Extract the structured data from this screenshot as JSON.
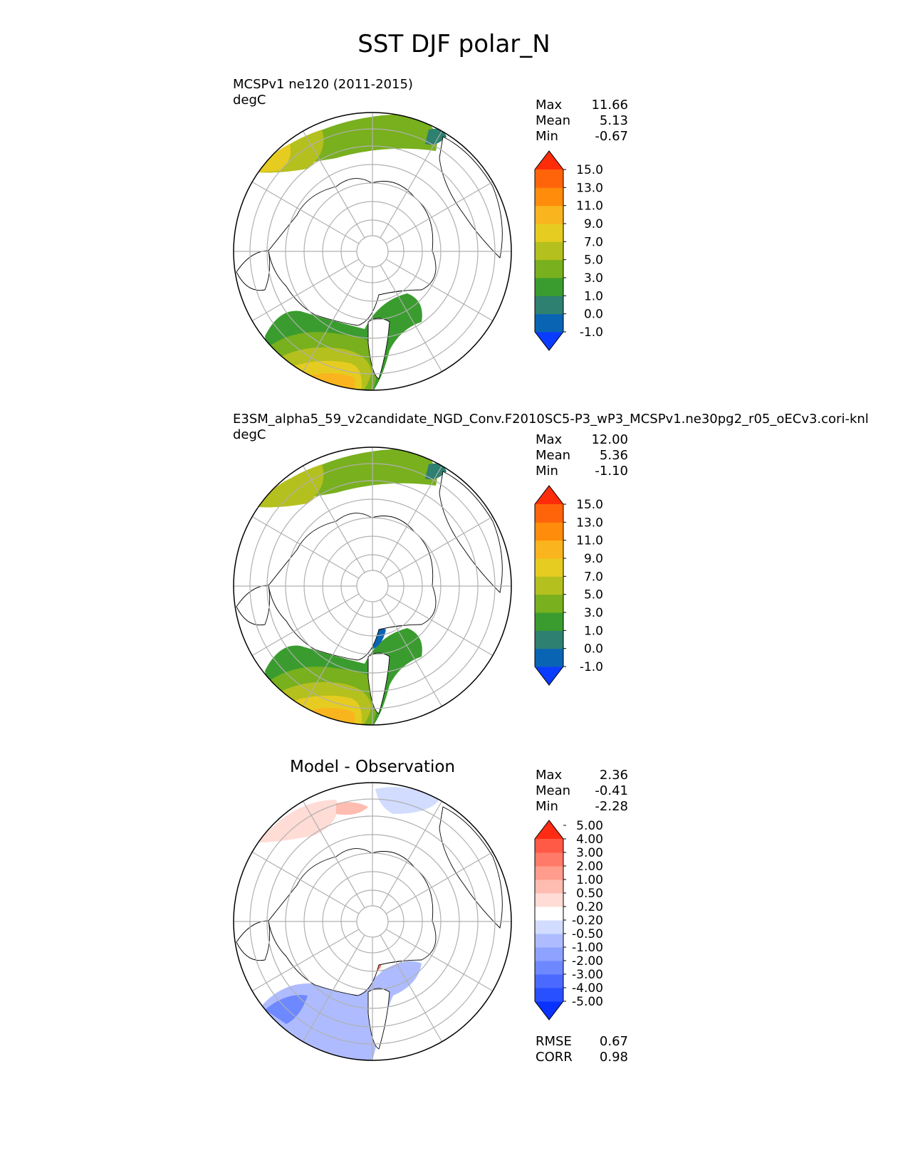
{
  "title": "SST DJF polar_N",
  "panels": [
    {
      "title_lines": [
        "MCSPv1 ne120 (2011-2015)",
        "degC"
      ],
      "stats": [
        [
          "Max",
          "11.66"
        ],
        [
          "Mean",
          "5.13"
        ],
        [
          "Min",
          "-0.67"
        ]
      ],
      "colorbar": {
        "colors": [
          "#0a3cff",
          "#0a64b4",
          "#2e8070",
          "#3a9c2e",
          "#78b01e",
          "#b4c01e",
          "#e6cc20",
          "#fab41e",
          "#ff8c0a",
          "#ff640a",
          "#ff2c0a"
        ],
        "labels": [
          "-1.0",
          "0.0",
          "1.0",
          "3.0",
          "5.0",
          "7.0",
          "9.0",
          "11.0",
          "13.0",
          "15.0"
        ]
      }
    },
    {
      "title_lines": [
        "E3SM_alpha5_59_v2candidate_NGD_Conv.F2010SC5-P3_wP3_MCSPv1.ne30pg2_r05_oECv3.cori-knl",
        "degC"
      ],
      "stats": [
        [
          "Max",
          "12.00"
        ],
        [
          "Mean",
          "5.36"
        ],
        [
          "Min",
          "-1.10"
        ]
      ],
      "colorbar": {
        "colors": [
          "#0a3cff",
          "#0a64b4",
          "#2e8070",
          "#3a9c2e",
          "#78b01e",
          "#b4c01e",
          "#e6cc20",
          "#fab41e",
          "#ff8c0a",
          "#ff640a",
          "#ff2c0a"
        ],
        "labels": [
          "-1.0",
          "0.0",
          "1.0",
          "3.0",
          "5.0",
          "7.0",
          "9.0",
          "11.0",
          "13.0",
          "15.0"
        ]
      }
    },
    {
      "title_center": "Model - Observation",
      "stats": [
        [
          "Max",
          "2.36"
        ],
        [
          "Mean",
          "-0.41"
        ],
        [
          "Min",
          "-2.28"
        ]
      ],
      "stats_bottom": [
        [
          "RMSE",
          "0.67"
        ],
        [
          "CORR",
          "0.98"
        ]
      ],
      "colorbar": {
        "colors": [
          "#0a32ff",
          "#2850ff",
          "#4a6aff",
          "#6e88ff",
          "#8ea2ff",
          "#aebcff",
          "#d2dcff",
          "#ffffff",
          "#ffdcd6",
          "#ffbcb0",
          "#ff9c8c",
          "#ff7a68",
          "#ff5a46",
          "#ff2c14"
        ],
        "labels": [
          "-5.00",
          "-4.00",
          "-3.00",
          "-2.00",
          "-1.00",
          "-0.50",
          "-0.20",
          "0.20",
          "0.50",
          "1.00",
          "2.00",
          "3.00",
          "4.00",
          "5.00"
        ]
      }
    }
  ]
}
